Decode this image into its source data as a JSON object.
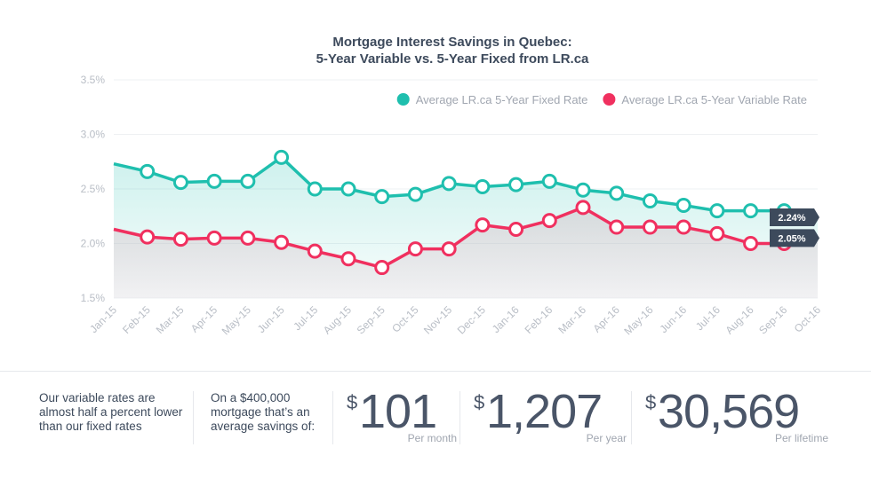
{
  "chart_data": {
    "type": "line",
    "title": "Mortgage Interest Savings in Quebec:",
    "subtitle": "5-Year Variable vs. 5-Year Fixed from LR.ca",
    "categories": [
      "Jan-15",
      "Feb-15",
      "Mar-15",
      "Apr-15",
      "May-15",
      "Jun-15",
      "Jul-15",
      "Aug-15",
      "Sep-15",
      "Oct-15",
      "Nov-15",
      "Dec-15",
      "Jan-16",
      "Feb-16",
      "Mar-16",
      "Apr-16",
      "May-16",
      "Jun-16",
      "Jul-16",
      "Aug-16",
      "Sep-16",
      "Oct-16"
    ],
    "series": [
      {
        "name": "Average LR.ca 5-Year Fixed Rate",
        "color": "#1fbfae",
        "values": [
          2.73,
          2.66,
          2.56,
          2.57,
          2.57,
          2.79,
          2.5,
          2.5,
          2.43,
          2.45,
          2.55,
          2.52,
          2.54,
          2.57,
          2.49,
          2.46,
          2.39,
          2.35,
          2.3,
          2.3,
          2.3,
          2.24
        ],
        "value_labels": [
          null,
          null,
          null,
          null,
          null,
          null,
          null,
          null,
          null,
          null,
          null,
          null,
          null,
          null,
          null,
          null,
          null,
          null,
          null,
          null,
          null,
          "2.24%"
        ]
      },
      {
        "name": "Average LR.ca 5-Year Variable Rate",
        "color": "#f0305f",
        "values": [
          2.13,
          2.06,
          2.04,
          2.05,
          2.05,
          2.01,
          1.93,
          1.86,
          1.78,
          1.95,
          1.95,
          2.17,
          2.13,
          2.21,
          2.33,
          2.15,
          2.15,
          2.15,
          2.09,
          2.0,
          2.0,
          2.05
        ],
        "value_labels": [
          null,
          null,
          null,
          null,
          null,
          null,
          null,
          null,
          null,
          null,
          null,
          null,
          null,
          null,
          null,
          null,
          null,
          null,
          null,
          null,
          null,
          "2.05%"
        ]
      }
    ],
    "ylim": [
      1.5,
      3.5
    ],
    "yticks": [
      {
        "value": 1.5,
        "label": "1.5%"
      },
      {
        "value": 2.0,
        "label": "2.0%"
      },
      {
        "value": 2.5,
        "label": "2.5%"
      },
      {
        "value": 3.0,
        "label": "3.0%"
      },
      {
        "value": 3.5,
        "label": "3.5%"
      }
    ],
    "grid": true,
    "legend": "top-right"
  },
  "summary": {
    "note": "Our variable rates are almost half a percent lower than our fixed rates",
    "intro": "On a $400,000 mortgage that’s an average savings of:",
    "stats": [
      {
        "currency": "$",
        "amount": "101",
        "period": "Per month"
      },
      {
        "currency": "$",
        "amount": "1,207",
        "period": "Per year"
      },
      {
        "currency": "$",
        "amount": "30,569",
        "period": "Per lifetime"
      }
    ]
  }
}
